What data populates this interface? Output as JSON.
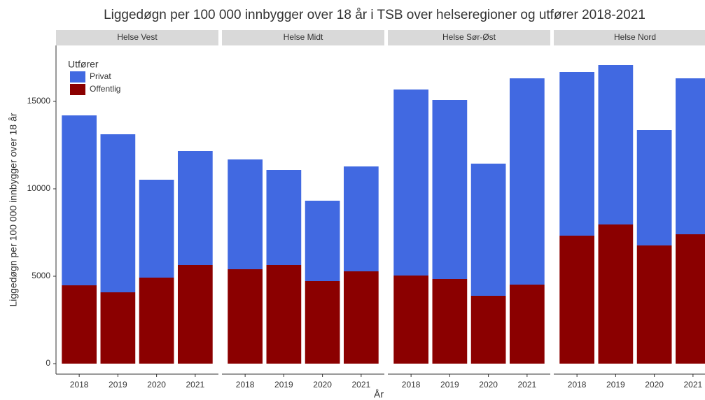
{
  "chart_data": {
    "type": "bar",
    "stacked": true,
    "title": "Liggedøgn per 100 000 innbygger over 18 år i TSB over helseregioner og utfører 2018-2021",
    "xlabel": "År",
    "ylabel": "Liggedøgn per 100 000 innbygger over 18 år",
    "legend_title": "Utfører",
    "categories": [
      "2018",
      "2019",
      "2020",
      "2021"
    ],
    "facets": [
      {
        "title": "Helse Vest",
        "series": [
          {
            "name": "Offentlig",
            "color": "#8b0000",
            "values": [
              4480,
              4080,
              4920,
              5640
            ]
          },
          {
            "name": "Privat",
            "color": "#4169e1",
            "values": [
              9720,
              9040,
              5600,
              6520
            ]
          }
        ]
      },
      {
        "title": "Helse Midt",
        "series": [
          {
            "name": "Offentlig",
            "color": "#8b0000",
            "values": [
              5400,
              5640,
              4720,
              5280
            ]
          },
          {
            "name": "Privat",
            "color": "#4169e1",
            "values": [
              6280,
              5440,
              4600,
              6000
            ]
          }
        ]
      },
      {
        "title": "Helse Sør-Øst",
        "series": [
          {
            "name": "Offentlig",
            "color": "#8b0000",
            "values": [
              5040,
              4840,
              3880,
              4520
            ]
          },
          {
            "name": "Privat",
            "color": "#4169e1",
            "values": [
              10640,
              10240,
              7560,
              11800
            ]
          }
        ]
      },
      {
        "title": "Helse Nord",
        "series": [
          {
            "name": "Offentlig",
            "color": "#8b0000",
            "values": [
              7320,
              7960,
              6760,
              7400
            ]
          },
          {
            "name": "Privat",
            "color": "#4169e1",
            "values": [
              9360,
              9120,
              6600,
              8920
            ]
          }
        ]
      }
    ],
    "ylim": [
      -600,
      18200
    ],
    "yticks": [
      0,
      5000,
      10000,
      15000
    ]
  }
}
